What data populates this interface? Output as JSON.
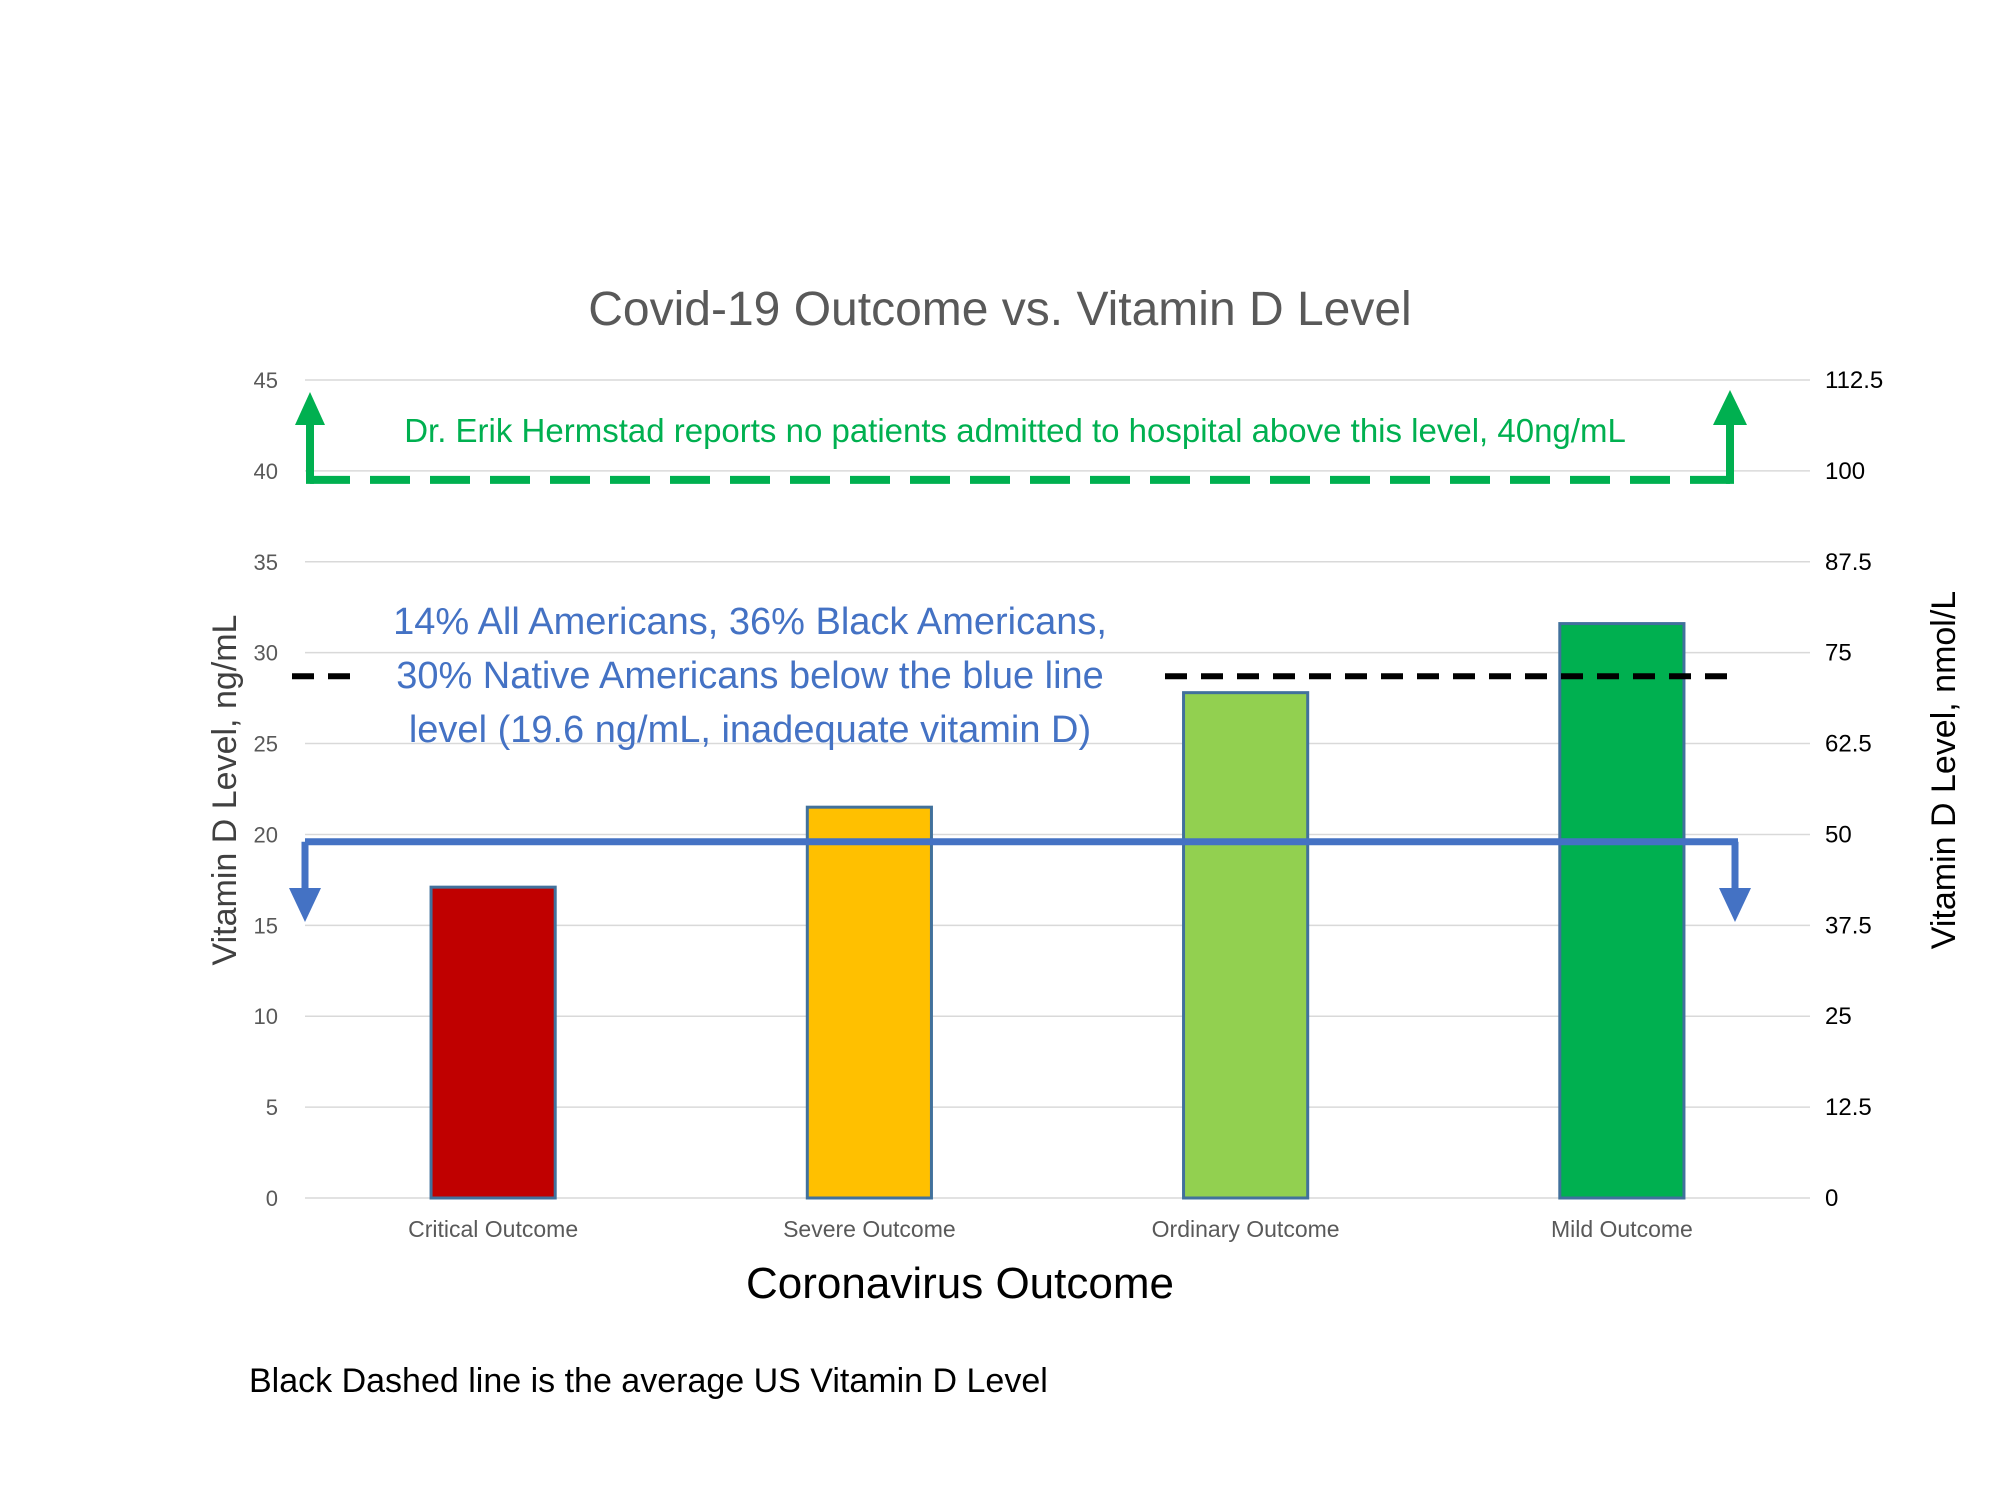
{
  "chart_data": {
    "type": "bar",
    "title": "Covid-19 Outcome vs. Vitamin D Level",
    "xlabel": "Coronavirus Outcome",
    "ylabel": "Vitamin D Level, ng/mL",
    "y2label": "Vitamin D Level, nmol/L",
    "categories": [
      "Critical Outcome",
      "Severe Outcome",
      "Ordinary Outcome",
      "Mild Outcome"
    ],
    "values": [
      17.1,
      21.5,
      27.8,
      31.6
    ],
    "bar_colors": [
      "#c00000",
      "#ffc000",
      "#92d050",
      "#00b050"
    ],
    "ylim": [
      0,
      45
    ],
    "yticks": [
      0,
      5,
      10,
      15,
      20,
      25,
      30,
      35,
      40,
      45
    ],
    "y2lim": [
      0,
      112.5
    ],
    "y2ticks": [
      "0",
      "12.5",
      "25",
      "37.5",
      "50",
      "62.5",
      "75",
      "87.5",
      "100",
      "112.5"
    ],
    "grid": true,
    "reference_lines": {
      "green": {
        "value": 40,
        "color": "#00b050",
        "label": "Dr. Erik Hermstad reports no patients admitted to hospital above this level, 40ng/mL"
      },
      "black": {
        "value": 28.7,
        "color": "#000000"
      },
      "blue": {
        "value": 19.6,
        "color": "#4472c4"
      }
    },
    "annotation": {
      "color": "#4472c4",
      "lines": [
        "14% All Americans, 36% Black Americans,",
        "30% Native Americans below the blue line",
        "level  (19.6 ng/mL, inadequate vitamin D)"
      ]
    }
  },
  "footnote": "Black Dashed line is the average US Vitamin D Level"
}
